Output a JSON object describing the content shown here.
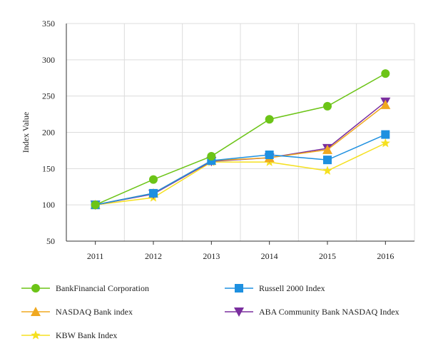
{
  "chart_data": {
    "type": "line",
    "title": "",
    "xlabel": "",
    "ylabel": "Index Value",
    "ylim": [
      50,
      350
    ],
    "yticks": [
      50,
      100,
      150,
      200,
      250,
      300,
      350
    ],
    "categories": [
      "2011",
      "2012",
      "2013",
      "2014",
      "2015",
      "2016"
    ],
    "grid": true,
    "legend_position": "bottom",
    "series": [
      {
        "name": "BankFinancial Corporation",
        "color": "#6cc417",
        "marker": "circle",
        "values": [
          100,
          135,
          167,
          218,
          236,
          281
        ]
      },
      {
        "name": "Russell 2000 Index",
        "color": "#1e90e0",
        "marker": "square",
        "values": [
          100,
          116,
          161,
          169,
          162,
          197
        ]
      },
      {
        "name": "NASDAQ Bank index",
        "color": "#f0a820",
        "marker": "triangle-up",
        "values": [
          100,
          116,
          161,
          165,
          176,
          238
        ]
      },
      {
        "name": "ABA Community Bank NASDAQ Index",
        "color": "#7a2e9e",
        "marker": "triangle-down",
        "values": [
          100,
          115,
          160,
          165,
          178,
          242
        ]
      },
      {
        "name": "KBW Bank Index",
        "color": "#f5e020",
        "marker": "star",
        "values": [
          100,
          110,
          159,
          159,
          147,
          185
        ]
      }
    ]
  }
}
